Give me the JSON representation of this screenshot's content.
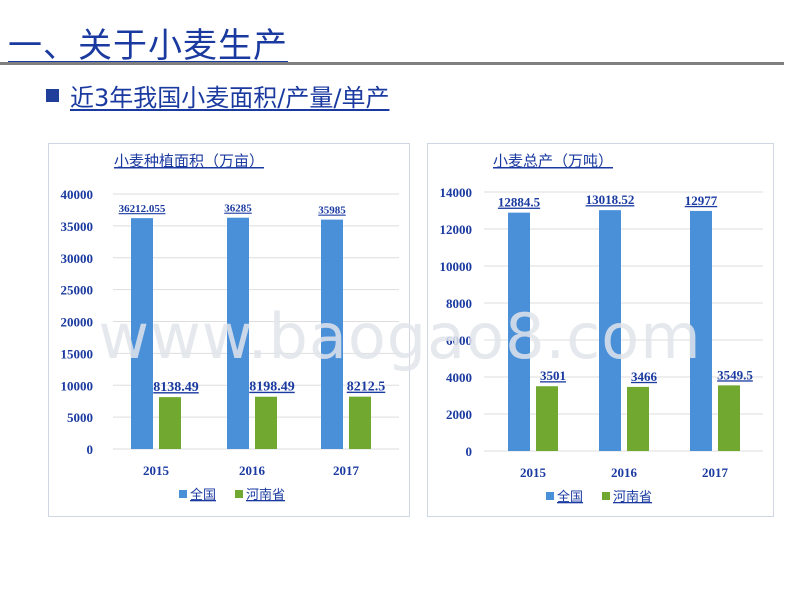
{
  "slide": {
    "title": "一、关于小麦生产",
    "subtitle": "近3年我国小麦面积/产量/单产"
  },
  "watermark": "www.baogao8.com",
  "colors": {
    "national": "#4a90d9",
    "henan": "#70a830",
    "text": "#1a3aa0",
    "grid": "#dedede"
  },
  "legend": [
    "全国",
    "河南省"
  ],
  "chart_data": [
    {
      "type": "bar",
      "title": "小麦种植面积（万亩）",
      "categories": [
        "2015",
        "2016",
        "2017"
      ],
      "series": [
        {
          "name": "全国",
          "values": [
            36212.055,
            36285,
            35985
          ],
          "labels": [
            "36212.055",
            "36285",
            "35985"
          ]
        },
        {
          "name": "河南省",
          "values": [
            8138.49,
            8198.49,
            8212.5
          ],
          "labels": [
            "8138.49",
            "8198.49",
            "8212.5"
          ]
        }
      ],
      "ylim": [
        0,
        40000
      ],
      "yticks": [
        "0",
        "5000",
        "10000",
        "15000",
        "20000",
        "25000",
        "30000",
        "35000",
        "40000"
      ],
      "grid": true,
      "legend_position": "bottom"
    },
    {
      "type": "bar",
      "title": "小麦总产（万吨）",
      "categories": [
        "2015",
        "2016",
        "2017"
      ],
      "series": [
        {
          "name": "全国",
          "values": [
            12884.5,
            13018.52,
            12977
          ],
          "labels": [
            "12884.5",
            "13018.52",
            "12977"
          ]
        },
        {
          "name": "河南省",
          "values": [
            3501,
            3466,
            3549.5
          ],
          "labels": [
            "3501",
            "3466",
            "3549.5"
          ]
        }
      ],
      "ylim": [
        0,
        14000
      ],
      "yticks": [
        "0",
        "2000",
        "4000",
        "6000",
        "8000",
        "10000",
        "12000",
        "14000"
      ],
      "grid": true,
      "legend_position": "bottom"
    }
  ]
}
